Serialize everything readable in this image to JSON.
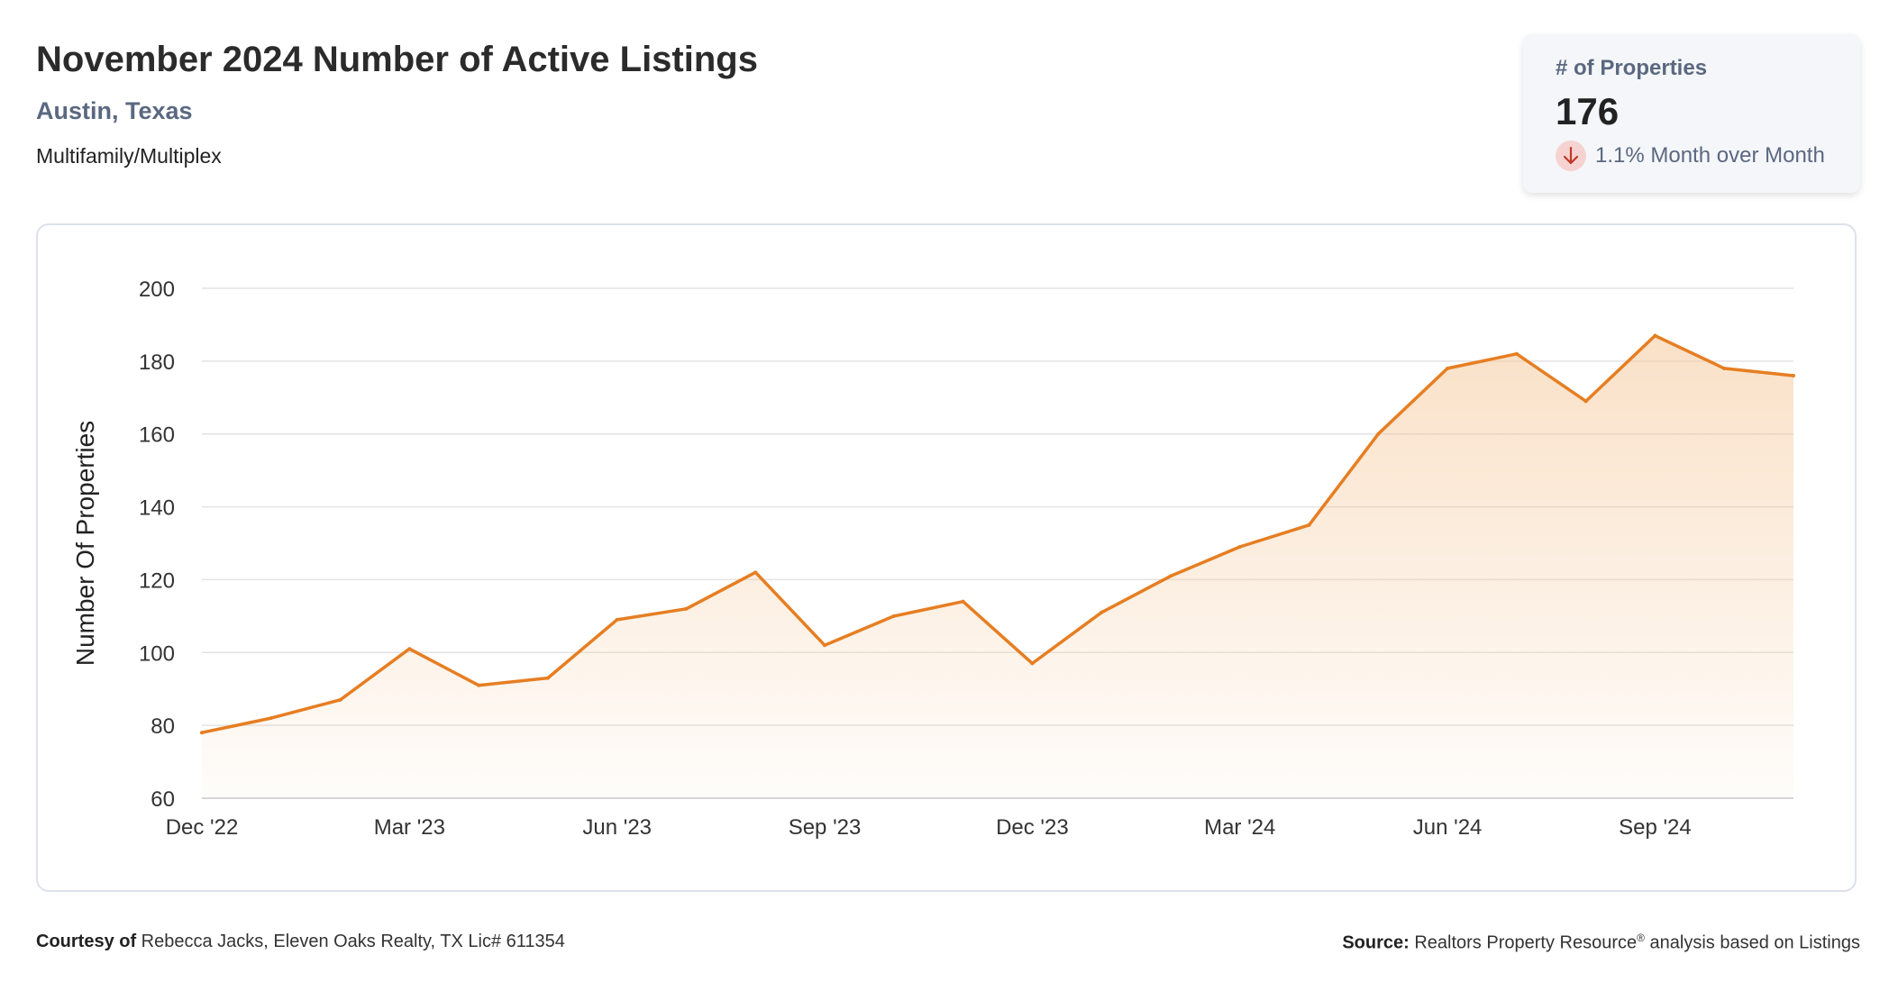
{
  "header": {
    "title": "November 2024 Number of Active Listings",
    "location": "Austin, Texas",
    "property_type": "Multifamily/Multiplex"
  },
  "stat_card": {
    "label": "# of Properties",
    "value": "176",
    "change_text": "1.1% Month over Month",
    "direction_icon": "arrow-down-icon"
  },
  "colors": {
    "line": "#e67e22",
    "fill": "#f6c89a",
    "grid": "#e3e3e3",
    "subtitle": "#5a6880",
    "down_badge": "#f6d3d0",
    "down_arrow": "#c0392b"
  },
  "chart_data": {
    "type": "area",
    "ylabel": "Number Of Properties",
    "xlabel": "",
    "ylim": [
      60,
      200
    ],
    "yticks": [
      60,
      80,
      100,
      120,
      140,
      160,
      180,
      200
    ],
    "x_tick_labels": [
      "Dec '22",
      "Mar '23",
      "Jun '23",
      "Sep '23",
      "Dec '23",
      "Mar '24",
      "Jun '24",
      "Sep '24"
    ],
    "x_tick_indices": [
      0,
      3,
      6,
      9,
      12,
      15,
      18,
      21
    ],
    "grid": true,
    "series": [
      {
        "values": [
          78,
          82,
          87,
          101,
          91,
          93,
          109,
          112,
          122,
          102,
          110,
          114,
          97,
          111,
          121,
          129,
          135,
          160,
          178,
          182,
          169,
          187,
          178,
          176
        ]
      }
    ]
  },
  "footer": {
    "courtesy_label": "Courtesy of",
    "courtesy_text": " Rebecca Jacks, Eleven Oaks Realty, TX Lic# 611354",
    "source_label": "Source:",
    "source_text": " Realtors Property Resource",
    "source_reg": "®",
    "source_tail": " analysis based on Listings"
  }
}
